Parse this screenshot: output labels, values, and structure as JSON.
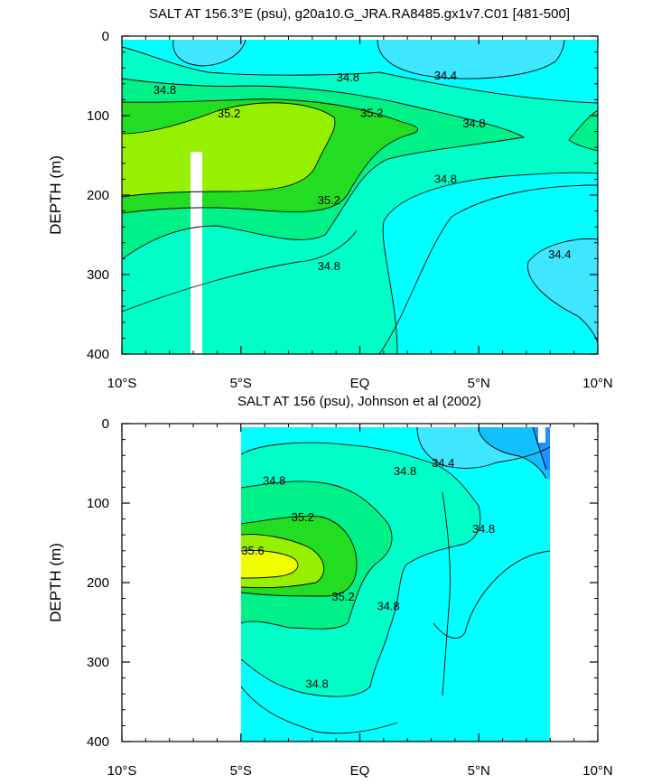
{
  "chart_data": [
    {
      "type": "contour",
      "title": "SALT AT 156.3°E (psu), g20a10.G_JRA.RA8485.gx1v7.C01 [481-500]",
      "xlabel": "",
      "ylabel": "DEPTH (m)",
      "xlim": [
        -10,
        10
      ],
      "ylim": [
        400,
        0
      ],
      "x_ticks": [
        -10,
        -5,
        0,
        5,
        10
      ],
      "x_tick_labels": [
        "10°S",
        "5°S",
        "EQ",
        "5°N",
        "10°N"
      ],
      "y_ticks": [
        0,
        100,
        200,
        300,
        400
      ],
      "y_tick_labels": [
        "0",
        "100",
        "200",
        "300",
        "400"
      ],
      "data_extent": {
        "lat": [
          -10,
          10
        ],
        "depth": [
          5,
          400
        ]
      },
      "missing_column_lat": [
        -7.1,
        -6.6
      ],
      "contour_labels": [
        {
          "text": "34.4",
          "lat": 3.6,
          "depth": 50
        },
        {
          "text": "34.8",
          "lat": -0.5,
          "depth": 52
        },
        {
          "text": "34.8",
          "lat": -8.2,
          "depth": 68
        },
        {
          "text": "35.2",
          "lat": -5.5,
          "depth": 98
        },
        {
          "text": "35.2",
          "lat": 0.5,
          "depth": 97
        },
        {
          "text": "34.8",
          "lat": 4.8,
          "depth": 110
        },
        {
          "text": "35.2",
          "lat": -1.3,
          "depth": 207
        },
        {
          "text": "34.8",
          "lat": 3.6,
          "depth": 180
        },
        {
          "text": "34.8",
          "lat": -1.3,
          "depth": 290
        },
        {
          "text": "34.4",
          "lat": 8.4,
          "depth": 275
        }
      ]
    },
    {
      "type": "contour",
      "title": "SALT AT 156 (psu), Johnson et al (2002)",
      "xlabel": "",
      "ylabel": "DEPTH (m)",
      "xlim": [
        -10,
        10
      ],
      "ylim": [
        400,
        0
      ],
      "x_ticks": [
        -10,
        -5,
        0,
        5,
        10
      ],
      "x_tick_labels": [
        "10°S",
        "5°S",
        "EQ",
        "5°N",
        "10°N"
      ],
      "y_ticks": [
        0,
        100,
        200,
        300,
        400
      ],
      "y_tick_labels": [
        "0",
        "100",
        "200",
        "300",
        "400"
      ],
      "data_extent": {
        "lat": [
          -5,
          8
        ],
        "depth": [
          5,
          400
        ]
      },
      "contour_labels": [
        {
          "text": "34.4",
          "lat": 3.5,
          "depth": 50
        },
        {
          "text": "34.8",
          "lat": 1.9,
          "depth": 60
        },
        {
          "text": "34.8",
          "lat": -3.6,
          "depth": 72
        },
        {
          "text": "35.2",
          "lat": -2.4,
          "depth": 118
        },
        {
          "text": "34.8",
          "lat": 5.2,
          "depth": 133
        },
        {
          "text": "35.6",
          "lat": -4.5,
          "depth": 160
        },
        {
          "text": "35.2",
          "lat": -0.7,
          "depth": 218
        },
        {
          "text": "34.8",
          "lat": 1.2,
          "depth": 230
        },
        {
          "text": "34.8",
          "lat": -1.8,
          "depth": 328
        }
      ]
    }
  ],
  "colors": {
    "s_34_0": "#1e90ff",
    "s_34_2": "#12c0ff",
    "s_34_4": "#3ee6ff",
    "s_34_6": "#00ffff",
    "s_34_8": "#00ffc8",
    "s_35_0": "#00f08a",
    "s_35_2": "#22dd22",
    "s_35_4": "#96f000",
    "s_35_6": "#f0ff00"
  }
}
